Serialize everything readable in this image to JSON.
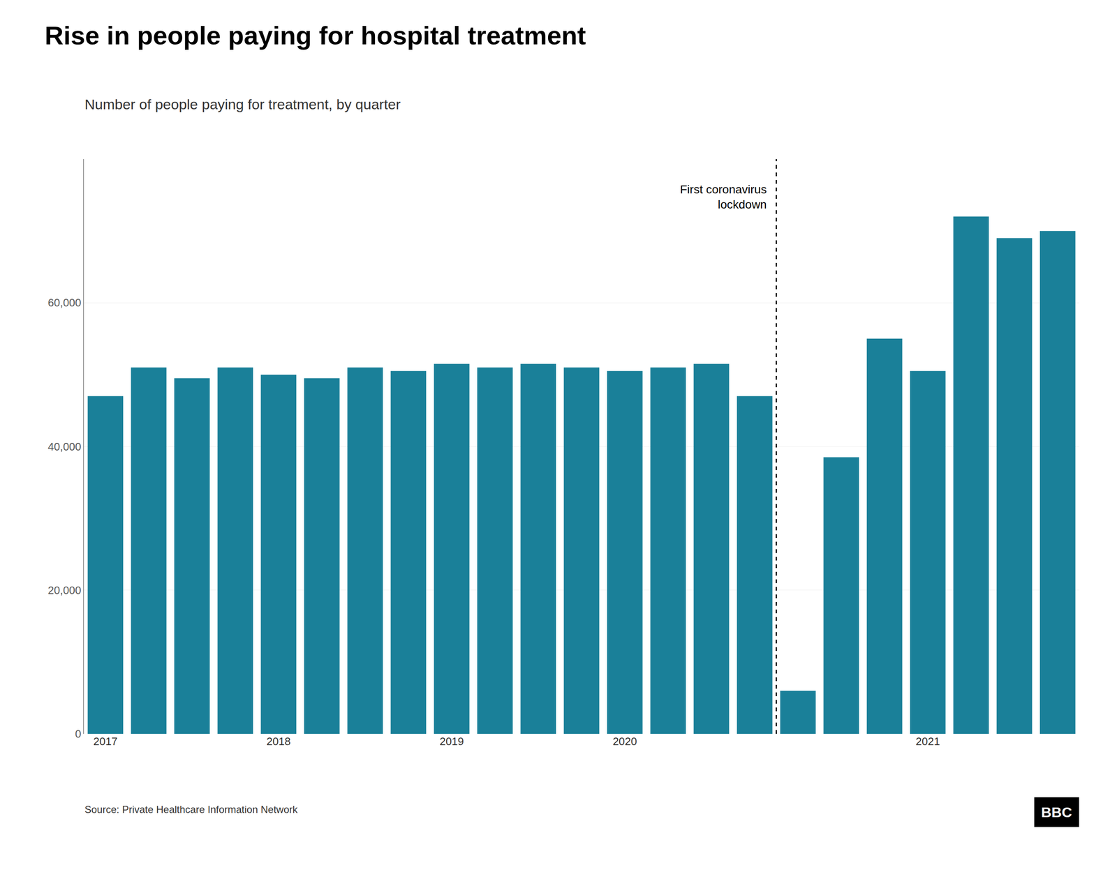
{
  "chart_data": {
    "type": "bar",
    "title": "Rise in people paying for hospital treatment",
    "subtitle": "Number of people paying for treatment, by quarter",
    "source": "Source: Private Healthcare Information Network",
    "logo": "BBC",
    "categories": [
      "2017",
      null,
      null,
      null,
      "2018",
      null,
      null,
      null,
      "2019",
      null,
      null,
      null,
      "2020",
      null,
      null,
      null,
      null,
      null,
      null,
      "2021",
      null,
      null,
      null
    ],
    "values": [
      47000,
      51000,
      49500,
      51000,
      50000,
      49500,
      51000,
      50500,
      51500,
      51000,
      51500,
      51000,
      50500,
      51000,
      51500,
      47000,
      6000,
      38500,
      55000,
      50500,
      72000,
      69000,
      70000
    ],
    "color": "#1a8099",
    "annotations": [
      {
        "text": "First coronavirus\nlockdown",
        "category_index": 16
      }
    ],
    "ylim": [
      0,
      80000
    ],
    "yticks": [
      0,
      {
        "value": 20000,
        "label": "20,000"
      },
      {
        "value": 40000,
        "label": "40,000"
      },
      {
        "value": 60000,
        "label": "60,000"
      }
    ],
    "grid": true
  }
}
